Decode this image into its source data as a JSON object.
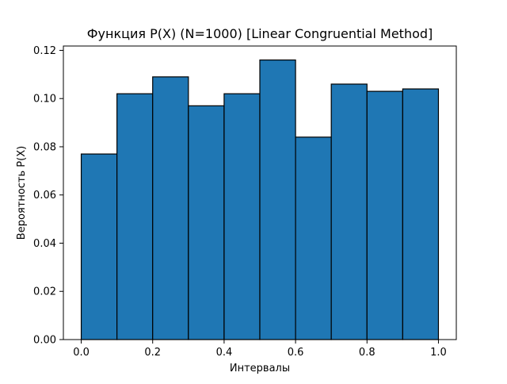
{
  "chart_data": {
    "type": "bar",
    "title": "Функция P(X) (N=1000) [Linear Congruential Method]",
    "xlabel": "Интервалы",
    "ylabel": "Вероятность P(X)",
    "bins": [
      {
        "start": 0.0,
        "end": 0.1,
        "value": 0.077
      },
      {
        "start": 0.1,
        "end": 0.2,
        "value": 0.102
      },
      {
        "start": 0.2,
        "end": 0.3,
        "value": 0.109
      },
      {
        "start": 0.3,
        "end": 0.4,
        "value": 0.097
      },
      {
        "start": 0.4,
        "end": 0.5,
        "value": 0.102
      },
      {
        "start": 0.5,
        "end": 0.6,
        "value": 0.116
      },
      {
        "start": 0.6,
        "end": 0.7,
        "value": 0.084
      },
      {
        "start": 0.7,
        "end": 0.8,
        "value": 0.106
      },
      {
        "start": 0.8,
        "end": 0.9,
        "value": 0.103
      },
      {
        "start": 0.9,
        "end": 1.0,
        "value": 0.104
      }
    ],
    "xlim": [
      -0.05,
      1.05
    ],
    "ylim": [
      0,
      0.1218
    ],
    "x_ticks": [
      "0.0",
      "0.2",
      "0.4",
      "0.6",
      "0.8",
      "1.0"
    ],
    "y_ticks": [
      "0.00",
      "0.02",
      "0.04",
      "0.06",
      "0.08",
      "0.10",
      "0.12"
    ],
    "grid": false,
    "bar_color": "#1f77b4",
    "edge_color": "#000000"
  }
}
